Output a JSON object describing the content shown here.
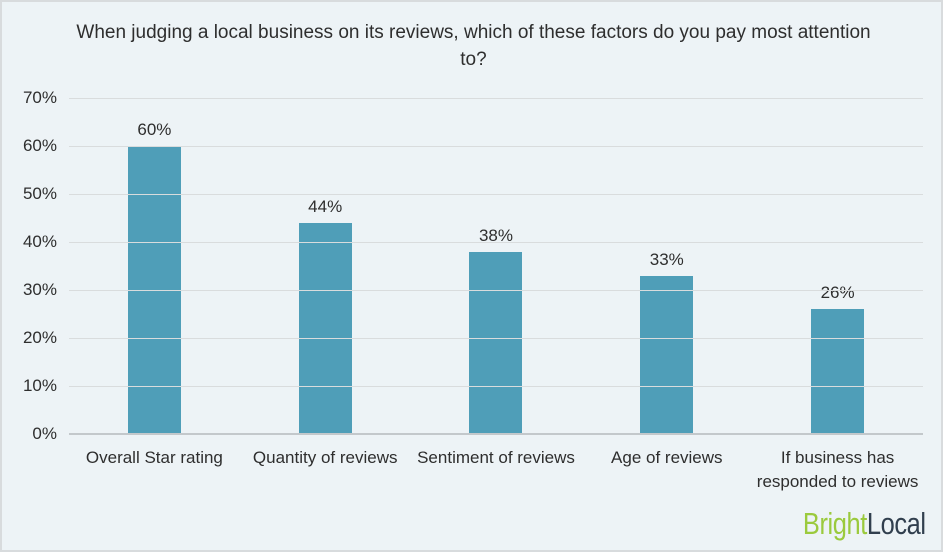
{
  "chart_data": {
    "type": "bar",
    "title": "When judging a local business on its reviews, which of these factors do you pay most attention to?",
    "categories": [
      "Overall Star rating",
      "Quantity of reviews",
      "Sentiment of reviews",
      "Age of reviews",
      "If business has responded to reviews"
    ],
    "values": [
      60,
      44,
      38,
      33,
      26
    ],
    "value_labels": [
      "60%",
      "44%",
      "38%",
      "33%",
      "26%"
    ],
    "xlabel": "",
    "ylabel": "",
    "ylim": [
      0,
      70
    ],
    "y_tick_step": 10,
    "y_tick_labels": [
      "0%",
      "10%",
      "20%",
      "30%",
      "40%",
      "50%",
      "60%",
      "70%"
    ],
    "grid": true,
    "legend": "none",
    "bar_color": "#4f9eb8"
  },
  "colors": {
    "background": "#edf3f6",
    "border": "#d8dbdd",
    "gridline": "#d9dcdd",
    "axis_line": "#c3c8cb",
    "text": "#2e2e2e",
    "brand_green": "#9bca3d",
    "brand_dark": "#313f4e"
  },
  "branding": {
    "first": "Bright",
    "second": "Local"
  }
}
